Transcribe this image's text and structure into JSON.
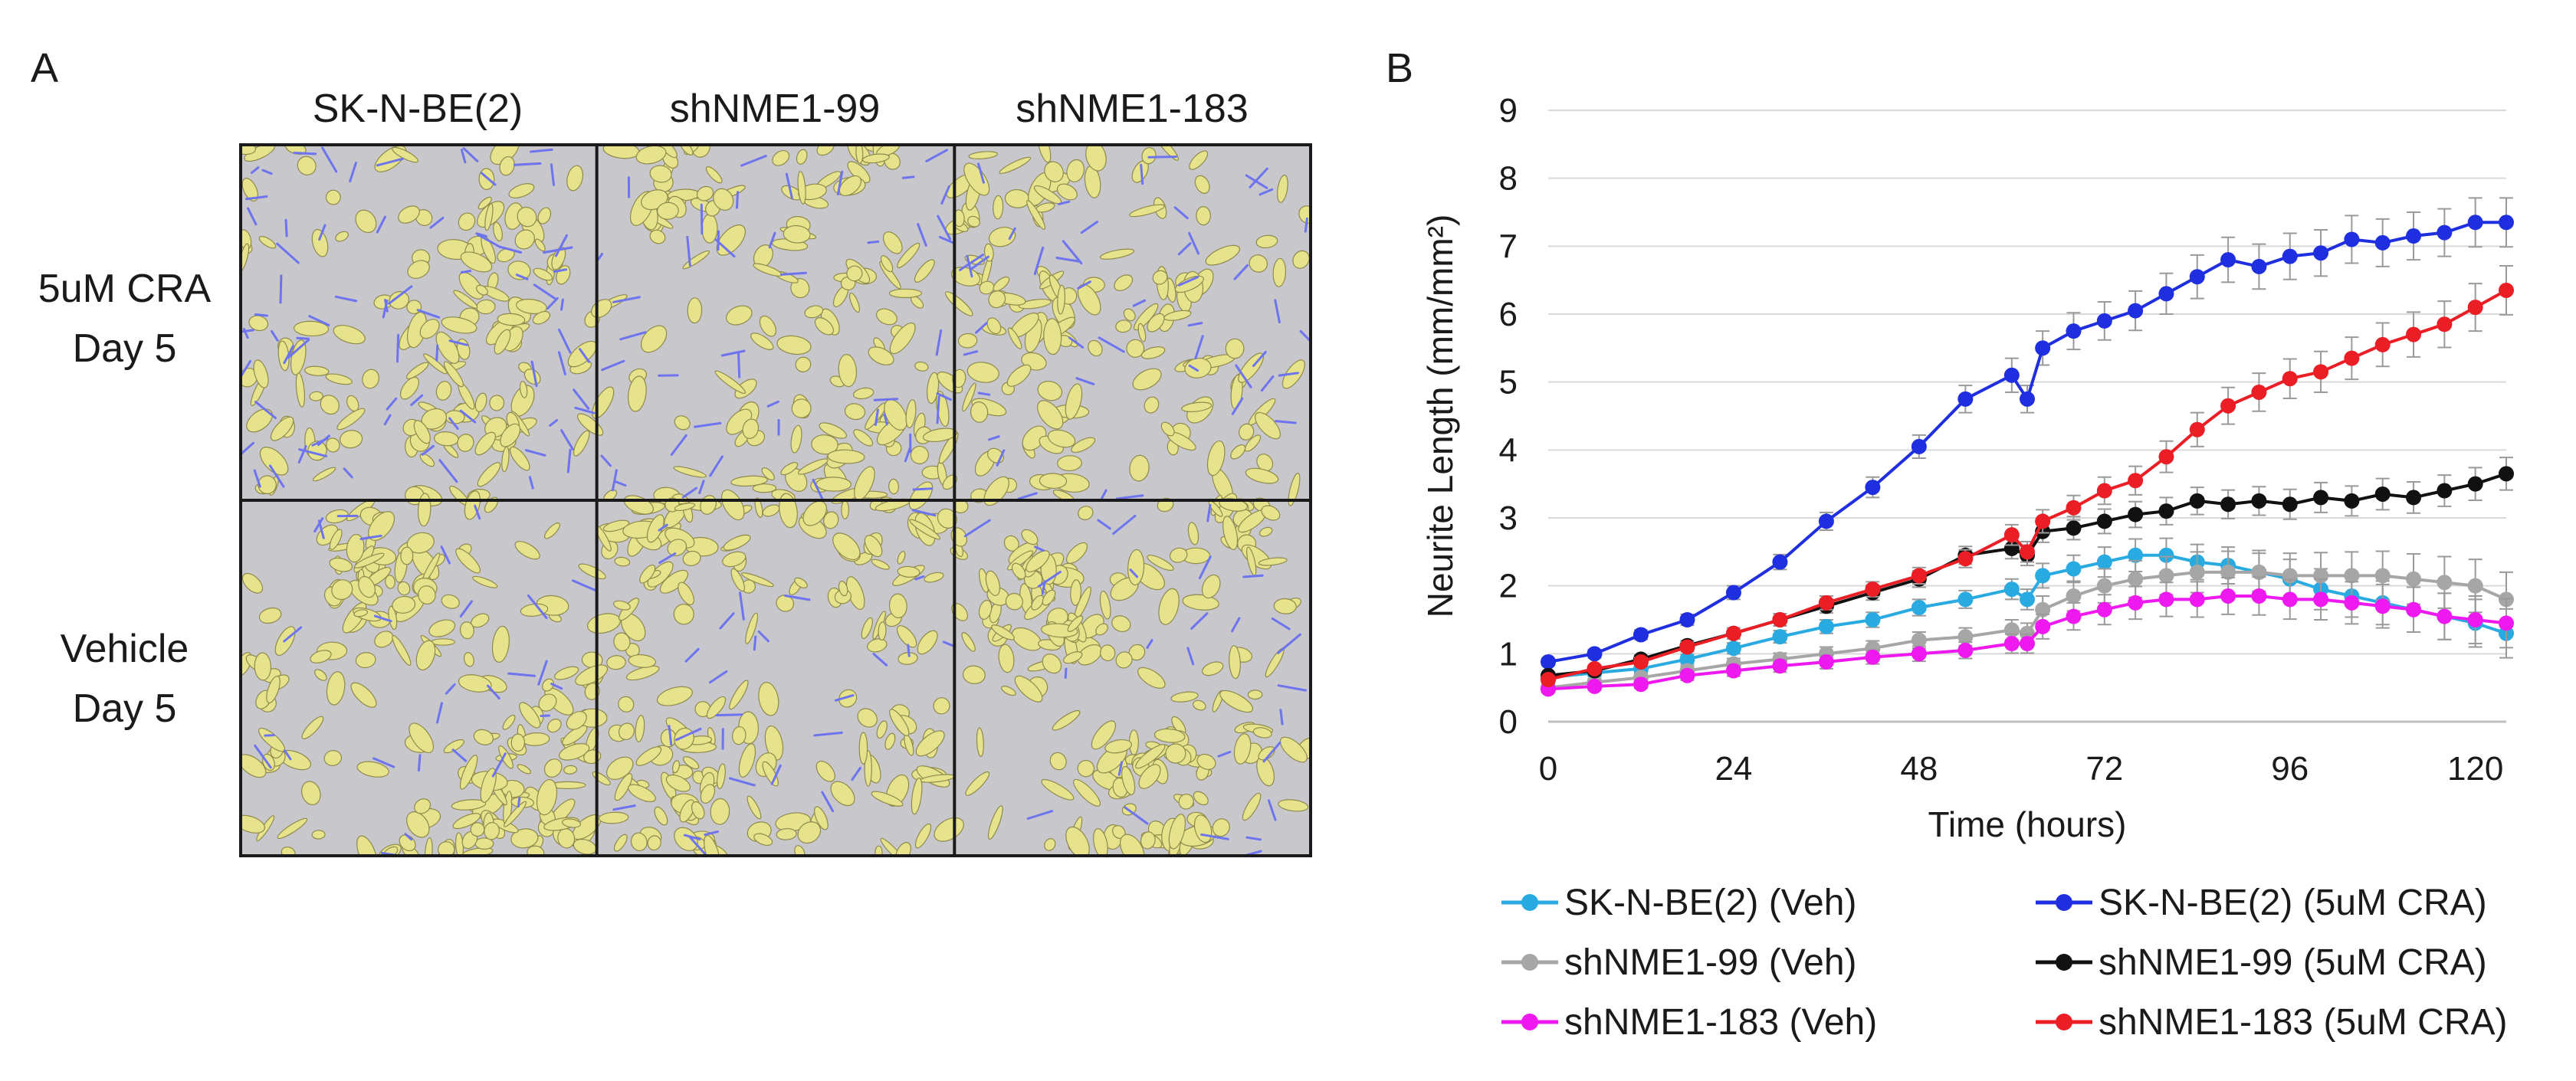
{
  "panelA": {
    "letter": "A",
    "columns": [
      "SK-N-BE(2)",
      "shNME1-99",
      "shNME1-183"
    ],
    "rows": [
      {
        "line1": "5uM CRA",
        "line2": "Day 5"
      },
      {
        "line1": "Vehicle",
        "line2": "Day 5"
      }
    ],
    "colors": {
      "background": "#c7c7cc",
      "cell": "#e6e38c",
      "cell_edge": "#8f8a4c",
      "neurite": "#6e74ee",
      "grid": "#1a1a1a"
    }
  },
  "panelB": {
    "letter": "B"
  },
  "chart_data": {
    "type": "line",
    "title": "",
    "xlabel": "Time (hours)",
    "ylabel": "Neurite Length (mm/mm²)",
    "xlim": [
      0,
      124
    ],
    "ylim": [
      0,
      9
    ],
    "xticks": [
      0,
      24,
      48,
      72,
      96,
      120
    ],
    "yticks": [
      0,
      1,
      2,
      3,
      4,
      5,
      6,
      7,
      8,
      9
    ],
    "x": [
      0,
      6,
      12,
      18,
      24,
      30,
      36,
      42,
      48,
      54,
      60,
      62,
      64,
      68,
      72,
      76,
      80,
      84,
      88,
      92,
      96,
      100,
      104,
      108,
      112,
      116,
      120,
      124
    ],
    "series": [
      {
        "name": "SK-N-BE(2) (Veh)",
        "color": "#29abe2",
        "values": [
          0.65,
          0.72,
          0.78,
          0.92,
          1.08,
          1.25,
          1.4,
          1.5,
          1.68,
          1.8,
          1.95,
          1.8,
          2.15,
          2.25,
          2.35,
          2.45,
          2.45,
          2.35,
          2.3,
          2.2,
          2.1,
          1.95,
          1.85,
          1.75,
          1.65,
          1.55,
          1.45,
          1.3
        ],
        "error": [
          0.05,
          0.05,
          0.06,
          0.07,
          0.08,
          0.09,
          0.1,
          0.11,
          0.12,
          0.13,
          0.15,
          0.15,
          0.18,
          0.2,
          0.22,
          0.24,
          0.25,
          0.26,
          0.27,
          0.28,
          0.29,
          0.3,
          0.31,
          0.32,
          0.33,
          0.34,
          0.35,
          0.36
        ]
      },
      {
        "name": "SK-N-BE(2) (5uM CRA)",
        "color": "#1f2fe0",
        "values": [
          0.88,
          1.0,
          1.28,
          1.5,
          1.9,
          2.35,
          2.95,
          3.45,
          4.05,
          4.75,
          5.1,
          4.75,
          5.5,
          5.75,
          5.9,
          6.05,
          6.3,
          6.55,
          6.8,
          6.7,
          6.85,
          6.9,
          7.1,
          7.05,
          7.15,
          7.2,
          7.35,
          7.35
        ],
        "error": [
          0.05,
          0.06,
          0.07,
          0.08,
          0.1,
          0.11,
          0.13,
          0.15,
          0.17,
          0.2,
          0.25,
          0.2,
          0.25,
          0.27,
          0.28,
          0.29,
          0.3,
          0.32,
          0.33,
          0.33,
          0.34,
          0.34,
          0.35,
          0.35,
          0.35,
          0.35,
          0.36,
          0.36
        ]
      },
      {
        "name": "shNME1-99 (Veh)",
        "color": "#a6a6a6",
        "values": [
          0.5,
          0.58,
          0.65,
          0.75,
          0.85,
          0.92,
          1.0,
          1.08,
          1.2,
          1.25,
          1.35,
          1.3,
          1.65,
          1.85,
          2.0,
          2.1,
          2.15,
          2.2,
          2.2,
          2.2,
          2.15,
          2.15,
          2.15,
          2.15,
          2.1,
          2.05,
          2.0,
          1.8
        ],
        "error": [
          0.05,
          0.05,
          0.06,
          0.07,
          0.08,
          0.09,
          0.1,
          0.11,
          0.12,
          0.13,
          0.15,
          0.15,
          0.2,
          0.22,
          0.25,
          0.27,
          0.28,
          0.3,
          0.31,
          0.32,
          0.33,
          0.34,
          0.35,
          0.36,
          0.37,
          0.38,
          0.39,
          0.4
        ]
      },
      {
        "name": "shNME1-99 (5uM CRA)",
        "color": "#111111",
        "values": [
          0.68,
          0.75,
          0.92,
          1.12,
          1.3,
          1.5,
          1.7,
          1.9,
          2.1,
          2.45,
          2.55,
          2.45,
          2.8,
          2.85,
          2.95,
          3.05,
          3.1,
          3.25,
          3.2,
          3.25,
          3.2,
          3.3,
          3.25,
          3.35,
          3.3,
          3.4,
          3.5,
          3.65
        ],
        "error": [
          0.05,
          0.05,
          0.06,
          0.07,
          0.08,
          0.09,
          0.1,
          0.11,
          0.12,
          0.13,
          0.15,
          0.15,
          0.16,
          0.17,
          0.18,
          0.19,
          0.2,
          0.2,
          0.21,
          0.21,
          0.22,
          0.22,
          0.22,
          0.23,
          0.23,
          0.23,
          0.24,
          0.24
        ]
      },
      {
        "name": "shNME1-183 (Veh)",
        "color": "#ee19ee",
        "values": [
          0.48,
          0.52,
          0.55,
          0.68,
          0.75,
          0.82,
          0.88,
          0.95,
          1.0,
          1.05,
          1.15,
          1.15,
          1.4,
          1.55,
          1.65,
          1.75,
          1.8,
          1.8,
          1.85,
          1.85,
          1.8,
          1.8,
          1.75,
          1.7,
          1.65,
          1.55,
          1.5,
          1.45
        ],
        "error": [
          0.05,
          0.05,
          0.06,
          0.07,
          0.08,
          0.09,
          0.1,
          0.1,
          0.11,
          0.12,
          0.14,
          0.14,
          0.18,
          0.2,
          0.22,
          0.24,
          0.25,
          0.26,
          0.27,
          0.28,
          0.29,
          0.3,
          0.31,
          0.32,
          0.33,
          0.34,
          0.35,
          0.36
        ]
      },
      {
        "name": "shNME1-183 (5uM CRA)",
        "color": "#ea1e24",
        "values": [
          0.62,
          0.78,
          0.88,
          1.1,
          1.3,
          1.5,
          1.75,
          1.95,
          2.15,
          2.4,
          2.75,
          2.5,
          2.95,
          3.15,
          3.4,
          3.55,
          3.9,
          4.3,
          4.65,
          4.85,
          5.05,
          5.15,
          5.35,
          5.55,
          5.7,
          5.85,
          6.1,
          6.35
        ],
        "error": [
          0.05,
          0.05,
          0.06,
          0.07,
          0.08,
          0.09,
          0.1,
          0.11,
          0.12,
          0.13,
          0.15,
          0.15,
          0.17,
          0.18,
          0.2,
          0.21,
          0.23,
          0.25,
          0.27,
          0.28,
          0.29,
          0.3,
          0.31,
          0.32,
          0.33,
          0.34,
          0.35,
          0.36
        ]
      }
    ],
    "legend_position": "bottom"
  }
}
